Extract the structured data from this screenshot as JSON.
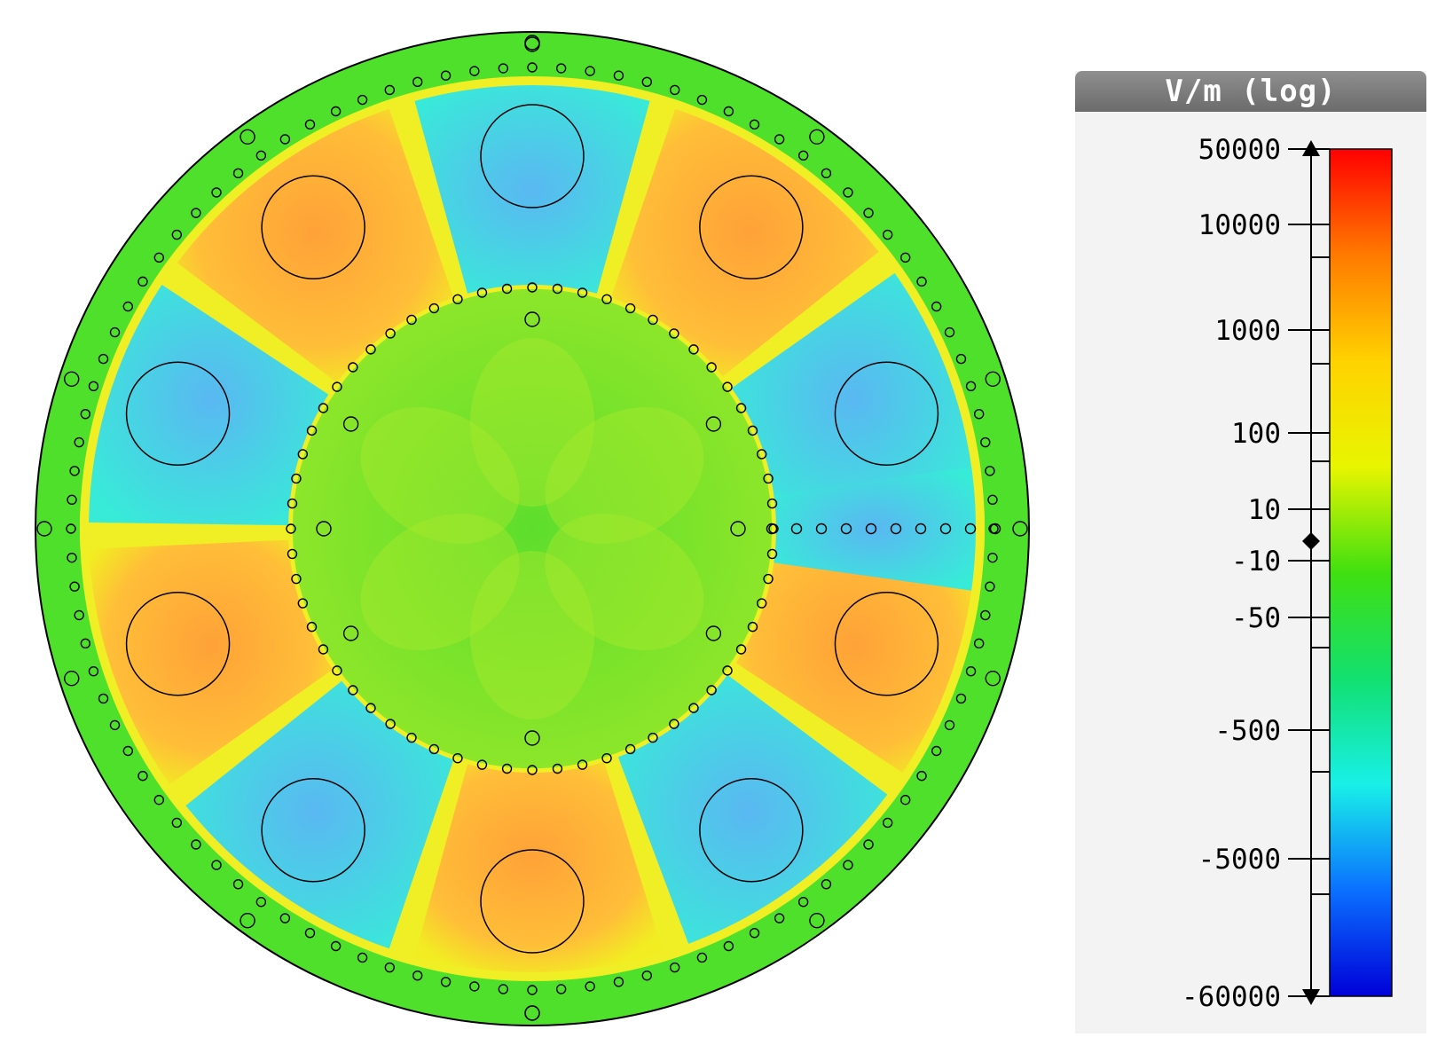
{
  "legend": {
    "title": "V/m (log)",
    "ticks": [
      "50000",
      "10000",
      "1000",
      "100",
      "10",
      "-10",
      "-50",
      "-500",
      "-5000",
      "-60000"
    ],
    "colors": [
      "#ff0000",
      "#ff7a00",
      "#ffd200",
      "#e8f500",
      "#40e010",
      "#12e070",
      "#18f0e8",
      "#0a70ff",
      "#0000d8"
    ]
  },
  "field": {
    "colors": {
      "background": "#4ee02a",
      "orange": "#ffac35",
      "yellow": "#f2f020",
      "cyan": "#35ead8",
      "blue": "#4ab0f5",
      "core": "#66e030",
      "outline": "#000000"
    }
  }
}
